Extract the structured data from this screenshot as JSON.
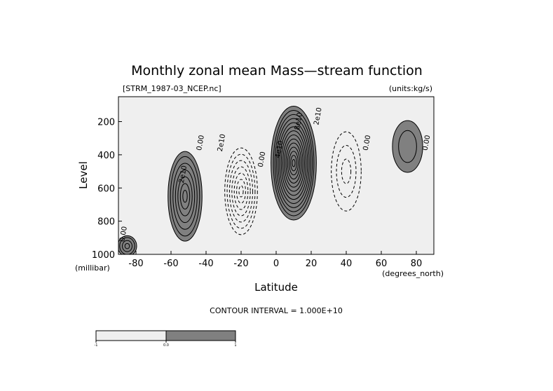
{
  "title": "Monthly zonal mean Mass—stream function",
  "file_label": "[STRM_1987-03_NCEP.nc]",
  "units_label": "(units:kg/s)",
  "contour_interval_text": "CONTOUR INTERVAL = 1.000E+10",
  "colors": {
    "positive_fill": "#808080",
    "negative_fill": "#efefef",
    "line": "#000000"
  },
  "chart_data": {
    "type": "heatmap",
    "title": "Monthly zonal mean Mass—stream function",
    "xlabel": "Latitude",
    "ylabel": "Level",
    "x_units": "(degrees_north)",
    "y_units": "(millibar)",
    "xlim": [
      -90,
      90
    ],
    "ylim": [
      1000,
      50
    ],
    "y_reversed": true,
    "x_ticks": [
      -80,
      -60,
      -40,
      -20,
      0,
      20,
      40,
      60,
      80
    ],
    "x_tick_labels": [
      "-80",
      "-60",
      "-40",
      "-20",
      "0",
      "20",
      "40",
      "60",
      "80"
    ],
    "y_ticks": [
      1000,
      800,
      600,
      400,
      200
    ],
    "y_tick_labels": [
      "1000",
      "800",
      "600",
      "400",
      "200"
    ],
    "contour_interval": 10000000000,
    "colorbar": {
      "levels": [
        -1,
        0,
        1
      ],
      "labels": [
        "-1",
        "0.0",
        "1"
      ],
      "colors": [
        "#efefef",
        "#808080"
      ]
    },
    "cells": [
      {
        "name": "southern-polar-cell",
        "center_lat": -85,
        "center_level": 950,
        "half_width_lat": 5,
        "half_depth_level": 60,
        "peak": 30000000000
      },
      {
        "name": "southern-ferrel-cell",
        "center_lat": -52,
        "center_level": 650,
        "half_width_lat": 9,
        "half_depth_level": 260,
        "peak": 60000000000
      },
      {
        "name": "southern-hadley-cell",
        "center_lat": -20,
        "center_level": 620,
        "half_width_lat": 10,
        "half_depth_level": 280,
        "peak": -70000000000
      },
      {
        "name": "northern-hadley-cell",
        "center_lat": 10,
        "center_level": 450,
        "half_width_lat": 12,
        "half_depth_level": 330,
        "peak": 130000000000
      },
      {
        "name": "northern-ferrel-cell",
        "center_lat": 40,
        "center_level": 500,
        "half_width_lat": 10,
        "half_depth_level": 280,
        "peak": -30000000000
      },
      {
        "name": "northern-polar-cell",
        "center_lat": 75,
        "center_level": 350,
        "half_width_lat": 8,
        "half_depth_level": 150,
        "peak": 10000000000
      }
    ],
    "contour_labels": [
      {
        "text": "2e10",
        "lat": -52,
        "level": 520
      },
      {
        "text": "0.00",
        "lat": -42,
        "level": 330
      },
      {
        "text": "2e10",
        "lat": -30,
        "level": 330
      },
      {
        "text": "0.00",
        "lat": -7,
        "level": 430
      },
      {
        "text": "4e10",
        "lat": 3,
        "level": 370
      },
      {
        "text": "8e10",
        "lat": 14,
        "level": 200
      },
      {
        "text": "2e10",
        "lat": 25,
        "level": 170
      },
      {
        "text": "0.00",
        "lat": 53,
        "level": 330
      },
      {
        "text": "0.00",
        "lat": 87,
        "level": 330
      },
      {
        "text": "0.00",
        "lat": -86,
        "level": 880
      }
    ]
  }
}
